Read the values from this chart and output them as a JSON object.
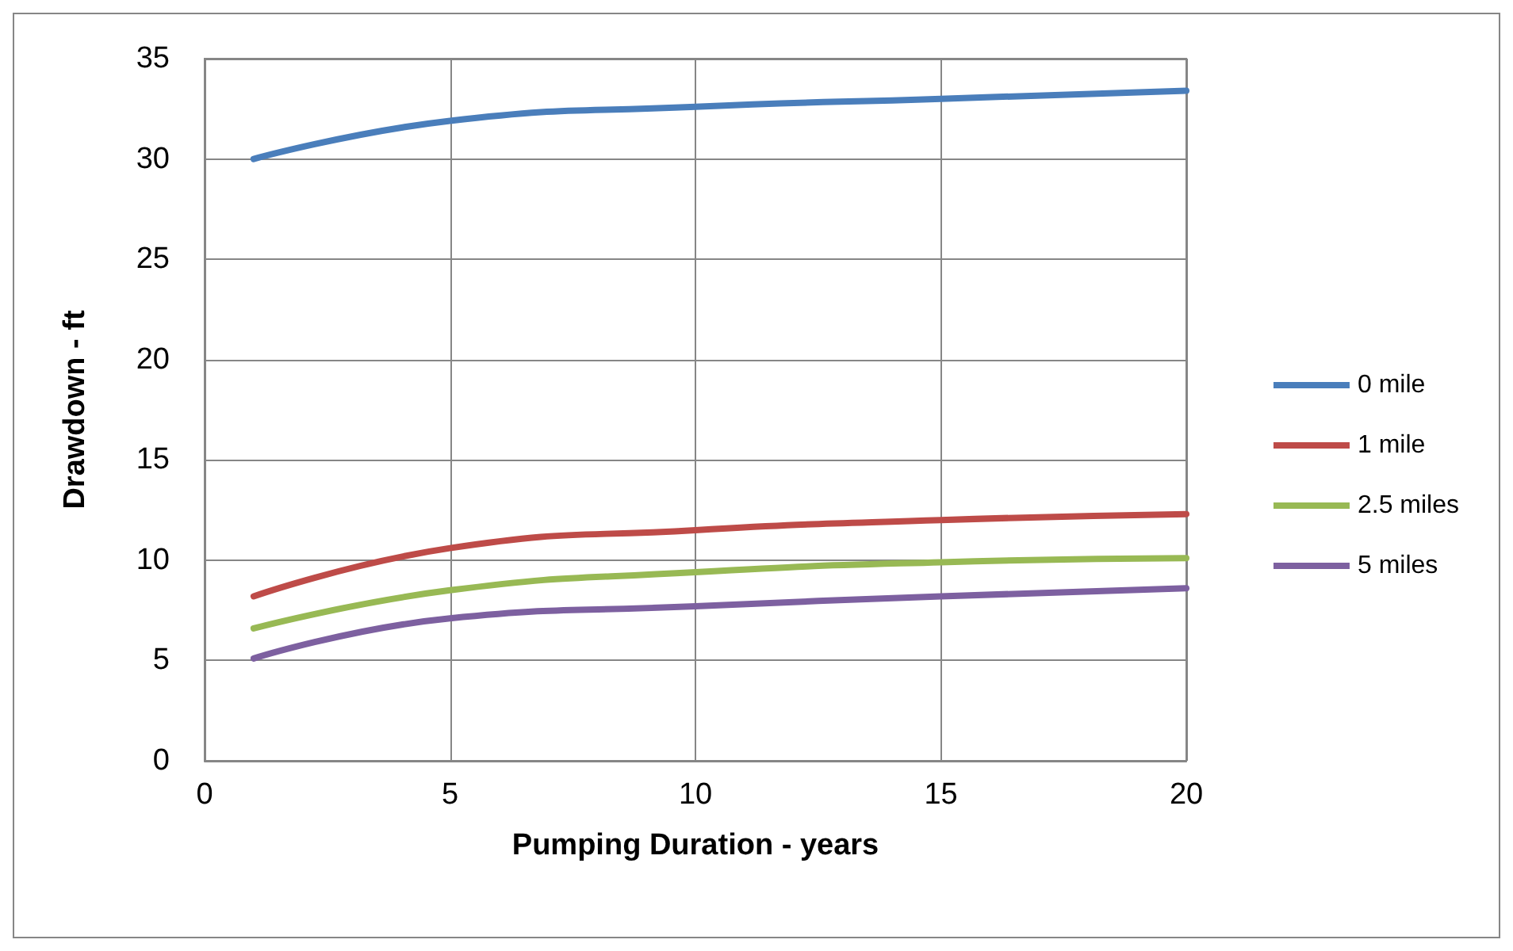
{
  "chart_data": {
    "type": "line",
    "xlabel": "Pumping Duration - years",
    "ylabel": "Drawdown - ft",
    "x": [
      1,
      5,
      10,
      15,
      20
    ],
    "series": [
      {
        "name": "0 mile",
        "color": "#4a7ebb",
        "values": [
          30,
          31.9,
          32.6,
          33,
          33.4
        ]
      },
      {
        "name": "1 mile",
        "color": "#be4b48",
        "values": [
          8.2,
          10.6,
          11.5,
          12,
          12.3
        ]
      },
      {
        "name": "2.5 miles",
        "color": "#98b954",
        "values": [
          6.6,
          8.5,
          9.4,
          9.9,
          10.1
        ]
      },
      {
        "name": "5 miles",
        "color": "#7d60a0",
        "values": [
          5.1,
          7.1,
          7.7,
          8.2,
          8.6
        ]
      }
    ],
    "xlim": [
      0,
      20
    ],
    "xticks": [
      0,
      5,
      10,
      15,
      20
    ],
    "ylim": [
      0,
      35
    ],
    "yticks": [
      0,
      5,
      10,
      15,
      20,
      25,
      30,
      35
    ],
    "grid": true,
    "legend": "right",
    "marker": "none",
    "line_style": "solid"
  }
}
